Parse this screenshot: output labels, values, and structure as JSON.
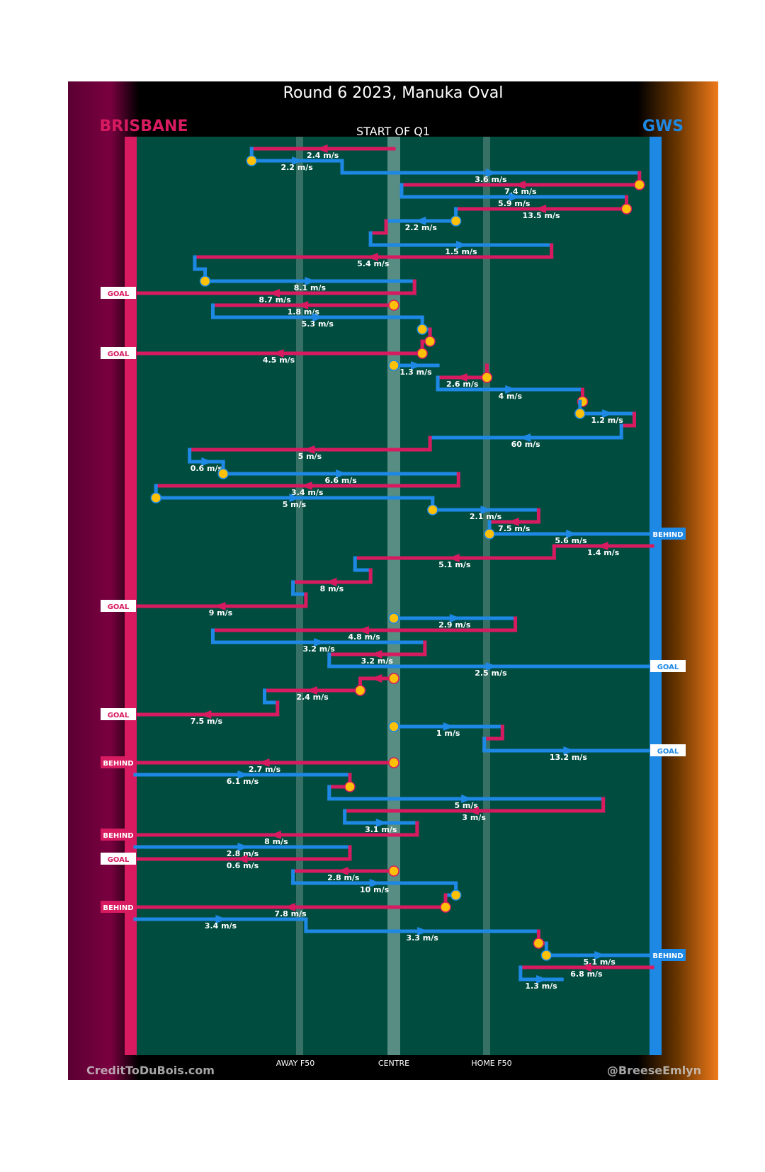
{
  "chart_data": {
    "type": "line",
    "title": "Round 6 2023, Manuka Oval",
    "subtitle": "START OF Q1",
    "left_team": "BRISBANE",
    "right_team": "GWS",
    "x_tick_labels": [
      "AWAY F50",
      "CENTRE",
      "HOME F50"
    ],
    "credit_left": "CreditToDuBois.com",
    "credit_right": "@BreeseEmlyn",
    "colors": {
      "brisbane": "#d81b60",
      "gws": "#1e88e5",
      "field": "#004d40",
      "ball": "#ffc107"
    },
    "segments": [
      {
        "team": "brisbane",
        "from": 0,
        "to": -0.55,
        "speed": "2.4 m/s"
      },
      {
        "team": "gws",
        "from": -0.55,
        "to": -0.2,
        "speed": "2.2 m/s",
        "ball": true
      },
      {
        "team": "gws",
        "from": -0.2,
        "to": 0.95,
        "speed": "3.6 m/s"
      },
      {
        "team": "brisbane",
        "from": 0.95,
        "to": 0.03,
        "speed": "7.4 m/s",
        "ball": true
      },
      {
        "team": "gws",
        "from": 0.03,
        "to": 0.9,
        "speed": "5.9 m/s"
      },
      {
        "team": "brisbane",
        "from": 0.9,
        "to": 0.24,
        "speed": "13.5 m/s",
        "ball": true
      },
      {
        "team": "gws",
        "from": 0.24,
        "to": -0.03,
        "speed": "2.2 m/s",
        "ball": true
      },
      {
        "team": "brisbane",
        "from": -0.03,
        "to": -0.09,
        "speed": ""
      },
      {
        "team": "gws",
        "from": -0.09,
        "to": 0.61,
        "speed": "1.5 m/s"
      },
      {
        "team": "brisbane",
        "from": 0.61,
        "to": -0.77,
        "speed": "5.4 m/s"
      },
      {
        "team": "gws",
        "from": -0.77,
        "to": -0.73,
        "speed": ""
      },
      {
        "team": "gws",
        "from": -0.73,
        "to": 0.08,
        "speed": "8.1 m/s",
        "ball": true
      },
      {
        "team": "brisbane",
        "from": 0.08,
        "to": -1,
        "speed": "8.7 m/s",
        "result": "GOAL"
      },
      {
        "team": "brisbane",
        "from": 0,
        "to": -0.7,
        "speed": "1.8 m/s",
        "ball": true
      },
      {
        "team": "gws",
        "from": -0.7,
        "to": 0.11,
        "speed": "5.3 m/s"
      },
      {
        "team": "gws",
        "from": 0.11,
        "to": 0.14,
        "speed": "",
        "ball": true
      },
      {
        "team": "brisbane",
        "from": 0.14,
        "to": 0.11,
        "speed": "",
        "ball": true
      },
      {
        "team": "brisbane",
        "from": 0.11,
        "to": -1,
        "speed": "4.5 m/s",
        "result": "GOAL",
        "ball": true
      },
      {
        "team": "gws",
        "from": 0,
        "to": 0.17,
        "speed": "1.3 m/s",
        "ball": true
      },
      {
        "team": "brisbane",
        "from": 0.36,
        "to": 0.17,
        "speed": "2.6 m/s",
        "ball": true
      },
      {
        "team": "gws",
        "from": 0.17,
        "to": 0.73,
        "speed": "4 m/s"
      },
      {
        "team": "brisbane",
        "from": 0.73,
        "to": 0.72,
        "speed": "",
        "ball": true
      },
      {
        "team": "gws",
        "from": 0.72,
        "to": 0.93,
        "speed": "1.2 m/s",
        "ball": true
      },
      {
        "team": "brisbane",
        "from": 0.93,
        "to": 0.88,
        "speed": ""
      },
      {
        "team": "gws",
        "from": 0.88,
        "to": 0.14,
        "speed": "60 m/s"
      },
      {
        "team": "brisbane",
        "from": 0.14,
        "to": -0.79,
        "speed": "5 m/s"
      },
      {
        "team": "gws",
        "from": -0.79,
        "to": -0.66,
        "speed": "0.6 m/s"
      },
      {
        "team": "gws",
        "from": -0.66,
        "to": 0.25,
        "speed": "6.6 m/s",
        "ball": true
      },
      {
        "team": "brisbane",
        "from": 0.25,
        "to": -0.92,
        "speed": "3.4 m/s"
      },
      {
        "team": "gws",
        "from": -0.92,
        "to": 0.15,
        "speed": "5 m/s",
        "ball": true
      },
      {
        "team": "gws",
        "from": 0.15,
        "to": 0.56,
        "speed": "2.1 m/s",
        "ball": true
      },
      {
        "team": "brisbane",
        "from": 0.56,
        "to": 0.37,
        "speed": "7.5 m/s"
      },
      {
        "team": "gws",
        "from": 0.37,
        "to": 1,
        "speed": "5.6 m/s",
        "result": "BEHIND",
        "ball": true
      },
      {
        "team": "brisbane",
        "from": 1,
        "to": 0.62,
        "speed": "1.4 m/s"
      },
      {
        "team": "brisbane",
        "from": 0.62,
        "to": -0.15,
        "speed": "5.1 m/s"
      },
      {
        "team": "gws",
        "from": -0.15,
        "to": -0.09,
        "speed": ""
      },
      {
        "team": "brisbane",
        "from": -0.09,
        "to": -0.39,
        "speed": "8 m/s"
      },
      {
        "team": "gws",
        "from": -0.39,
        "to": -0.34,
        "speed": ""
      },
      {
        "team": "brisbane",
        "from": -0.34,
        "to": -1,
        "speed": "9 m/s",
        "result": "GOAL"
      },
      {
        "team": "gws",
        "from": 0,
        "to": 0.47,
        "speed": "2.9 m/s",
        "ball": true
      },
      {
        "team": "brisbane",
        "from": 0.47,
        "to": -0.7,
        "speed": "4.8 m/s"
      },
      {
        "team": "gws",
        "from": -0.7,
        "to": 0.12,
        "speed": "3.2 m/s"
      },
      {
        "team": "brisbane",
        "from": 0.12,
        "to": -0.25,
        "speed": "3.2 m/s"
      },
      {
        "team": "gws",
        "from": -0.25,
        "to": 1,
        "speed": "2.5 m/s",
        "result": "GOAL"
      },
      {
        "team": "brisbane",
        "from": 0,
        "to": -0.13,
        "speed": "",
        "ball": true
      },
      {
        "team": "brisbane",
        "from": -0.13,
        "to": -0.5,
        "speed": "2.4 m/s",
        "ball": true
      },
      {
        "team": "gws",
        "from": -0.5,
        "to": -0.45,
        "speed": ""
      },
      {
        "team": "brisbane",
        "from": -0.45,
        "to": -1,
        "speed": "7.5 m/s",
        "result": "GOAL"
      },
      {
        "team": "gws",
        "from": 0,
        "to": 0.42,
        "speed": "1 m/s",
        "ball": true
      },
      {
        "team": "brisbane",
        "from": 0.42,
        "to": 0.35,
        "speed": ""
      },
      {
        "team": "gws",
        "from": 0.35,
        "to": 1,
        "speed": "13.2 m/s",
        "result": "GOAL"
      },
      {
        "team": "brisbane",
        "from": 0,
        "to": -1,
        "speed": "2.7 m/s",
        "result": "BEHIND",
        "ball": true
      },
      {
        "team": "gws",
        "from": -1,
        "to": -0.17,
        "speed": "6.1 m/s"
      },
      {
        "team": "brisbane",
        "from": -0.17,
        "to": -0.25,
        "speed": "",
        "ball": true
      },
      {
        "team": "gws",
        "from": -0.25,
        "to": 0.81,
        "speed": "5 m/s"
      },
      {
        "team": "brisbane",
        "from": 0.81,
        "to": -0.19,
        "speed": "3 m/s"
      },
      {
        "team": "gws",
        "from": -0.19,
        "to": 0.09,
        "speed": "3.1 m/s"
      },
      {
        "team": "brisbane",
        "from": 0.09,
        "to": -1,
        "speed": "8 m/s",
        "result": "BEHIND"
      },
      {
        "team": "gws",
        "from": -1,
        "to": -0.17,
        "speed": "2.8 m/s"
      },
      {
        "team": "brisbane",
        "from": -0.17,
        "to": -1,
        "speed": "0.6 m/s",
        "result": "GOAL"
      },
      {
        "team": "brisbane",
        "from": 0,
        "to": -0.39,
        "speed": "2.8 m/s",
        "ball": true
      },
      {
        "team": "gws",
        "from": -0.39,
        "to": 0.24,
        "speed": "10 m/s"
      },
      {
        "team": "gws",
        "from": 0.24,
        "to": 0.2,
        "speed": "",
        "ball": true
      },
      {
        "team": "brisbane",
        "from": 0.2,
        "to": -1,
        "speed": "7.8 m/s",
        "result": "BEHIND",
        "ball": true
      },
      {
        "team": "gws",
        "from": -1,
        "to": -0.34,
        "speed": "3.4 m/s"
      },
      {
        "team": "gws",
        "from": -0.34,
        "to": 0.56,
        "speed": "3.3 m/s"
      },
      {
        "team": "brisbane",
        "from": 0.56,
        "to": 0.59,
        "speed": "",
        "ball": true
      },
      {
        "team": "gws",
        "from": 0.59,
        "to": 1,
        "speed": "5.1 m/s",
        "result": "BEHIND",
        "ball": true
      },
      {
        "team": "brisbane",
        "from": 1,
        "to": 0.49,
        "speed": "6.8 m/s"
      },
      {
        "team": "gws",
        "from": 0.49,
        "to": 0.65,
        "speed": "1.3 m/s"
      }
    ]
  }
}
